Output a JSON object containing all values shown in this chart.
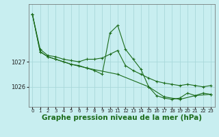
{
  "background_color": "#c8eef0",
  "grid_color": "#a8d8da",
  "line_color": "#1a6b1a",
  "xlabel": "Graphe pression niveau de la mer (hPa)",
  "xlabel_fontsize": 7.5,
  "yticks": [
    1026,
    1027
  ],
  "ylim": [
    1025.2,
    1029.3
  ],
  "xlim": [
    -0.5,
    23.5
  ],
  "xticks": [
    0,
    1,
    2,
    3,
    4,
    5,
    6,
    7,
    8,
    9,
    10,
    11,
    12,
    13,
    14,
    15,
    16,
    17,
    18,
    19,
    20,
    21,
    22,
    23
  ],
  "series": [
    {
      "x": [
        0,
        1,
        2,
        3,
        4,
        5,
        6,
        7,
        8,
        9,
        10,
        11,
        12,
        13,
        14,
        15,
        16,
        17,
        18,
        19,
        20,
        21,
        22,
        23
      ],
      "y": [
        1028.9,
        1027.5,
        1027.25,
        1027.2,
        1027.1,
        1027.05,
        1027.0,
        1027.1,
        1027.1,
        1027.15,
        1027.3,
        1027.45,
        1026.85,
        1026.65,
        1026.5,
        1026.35,
        1026.22,
        1026.15,
        1026.1,
        1026.05,
        1026.1,
        1026.05,
        1026.0,
        1026.05
      ],
      "marker": "+"
    },
    {
      "x": [
        0,
        1,
        2,
        3,
        4,
        5,
        6,
        7,
        8,
        9,
        10,
        11,
        12,
        13,
        14,
        15,
        16,
        17,
        18,
        19,
        20,
        21,
        22,
        23
      ],
      "y": [
        1028.9,
        1027.4,
        1027.2,
        1027.1,
        1027.0,
        1026.9,
        1026.85,
        1026.75,
        1026.65,
        1026.5,
        1028.15,
        1028.45,
        1027.5,
        1027.1,
        1026.7,
        1026.0,
        1025.65,
        1025.55,
        1025.5,
        1025.55,
        1025.75,
        1025.65,
        1025.75,
        1025.7
      ],
      "marker": "+"
    },
    {
      "x": [
        0,
        1,
        2,
        3,
        5,
        7,
        11,
        15,
        17,
        19,
        21,
        23
      ],
      "y": [
        1028.9,
        1027.4,
        1027.2,
        1027.1,
        1026.9,
        1026.75,
        1026.5,
        1026.0,
        1025.6,
        1025.5,
        1025.65,
        1025.7
      ],
      "marker": "+"
    }
  ]
}
